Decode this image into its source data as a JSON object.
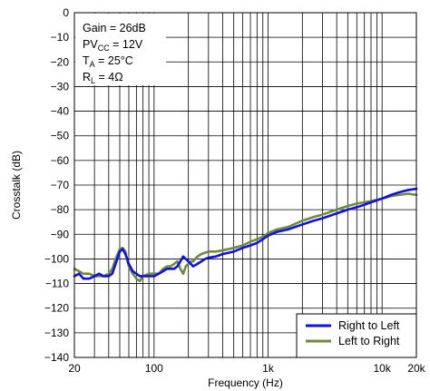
{
  "chart_data": {
    "type": "line",
    "title": "",
    "xlabel": "Frequency (Hz)",
    "ylabel": "Crosstalk (dB)",
    "x_scale": "log",
    "xlim": [
      20,
      20000
    ],
    "ylim": [
      -140,
      0
    ],
    "y_ticks": [
      0,
      -10,
      -20,
      -30,
      -40,
      -50,
      -60,
      -70,
      -80,
      -90,
      -100,
      -110,
      -120,
      -130,
      -140
    ],
    "y_tick_labels": [
      "0",
      "−10",
      "−20",
      "−30",
      "−40",
      "−50",
      "−60",
      "−70",
      "−80",
      "−90",
      "−100",
      "−110",
      "−120",
      "−130",
      "−140"
    ],
    "x_tick_labels": [
      {
        "value": 20,
        "label": "20"
      },
      {
        "value": 100,
        "label": "100"
      },
      {
        "value": 1000,
        "label": "1k"
      },
      {
        "value": 10000,
        "label": "10k"
      },
      {
        "value": 20000,
        "label": "20k"
      }
    ],
    "grid": true,
    "annotation": {
      "lines": [
        {
          "main": "Gain = 26dB",
          "sub": "",
          "tail": ""
        },
        {
          "main": "PV",
          "sub": "CC",
          "tail": " = 12V"
        },
        {
          "main": "T",
          "sub": "A",
          "tail": " = 25°C"
        },
        {
          "main": "R",
          "sub": "L",
          "tail": " = 4Ω"
        }
      ]
    },
    "legend_position": "bottom-right",
    "series": [
      {
        "name": "Right to Left",
        "color": "#1010e0",
        "points": [
          [
            20,
            -107
          ],
          [
            22,
            -106
          ],
          [
            24,
            -108
          ],
          [
            27,
            -108
          ],
          [
            30,
            -107
          ],
          [
            33,
            -106
          ],
          [
            36,
            -107
          ],
          [
            40,
            -107
          ],
          [
            43,
            -106
          ],
          [
            46,
            -102
          ],
          [
            50,
            -97
          ],
          [
            53,
            -96
          ],
          [
            56,
            -98
          ],
          [
            60,
            -102
          ],
          [
            65,
            -105
          ],
          [
            70,
            -106
          ],
          [
            75,
            -107
          ],
          [
            80,
            -107
          ],
          [
            90,
            -107
          ],
          [
            100,
            -107
          ],
          [
            110,
            -106
          ],
          [
            120,
            -105
          ],
          [
            130,
            -104
          ],
          [
            140,
            -104
          ],
          [
            150,
            -104
          ],
          [
            160,
            -103
          ],
          [
            170,
            -101
          ],
          [
            180,
            -99
          ],
          [
            190,
            -100
          ],
          [
            200,
            -101
          ],
          [
            210,
            -102
          ],
          [
            220,
            -103
          ],
          [
            240,
            -102
          ],
          [
            260,
            -101
          ],
          [
            280,
            -100
          ],
          [
            300,
            -99.5
          ],
          [
            350,
            -99
          ],
          [
            400,
            -98
          ],
          [
            450,
            -97.5
          ],
          [
            500,
            -97
          ],
          [
            600,
            -95.5
          ],
          [
            700,
            -94.5
          ],
          [
            800,
            -93.5
          ],
          [
            900,
            -92
          ],
          [
            1000,
            -90.5
          ],
          [
            1200,
            -89
          ],
          [
            1500,
            -88
          ],
          [
            2000,
            -86
          ],
          [
            2500,
            -84.5
          ],
          [
            3000,
            -83.5
          ],
          [
            4000,
            -81.5
          ],
          [
            5000,
            -80
          ],
          [
            6000,
            -79
          ],
          [
            7000,
            -78
          ],
          [
            8000,
            -77
          ],
          [
            10000,
            -75.5
          ],
          [
            12000,
            -74
          ],
          [
            14000,
            -73
          ],
          [
            17000,
            -72
          ],
          [
            20000,
            -71.5
          ]
        ]
      },
      {
        "name": "Left to Right",
        "color": "#6e8a3a",
        "points": [
          [
            20,
            -104
          ],
          [
            22,
            -105
          ],
          [
            24,
            -106
          ],
          [
            27,
            -106
          ],
          [
            30,
            -107
          ],
          [
            33,
            -107
          ],
          [
            36,
            -107
          ],
          [
            40,
            -106
          ],
          [
            43,
            -104
          ],
          [
            46,
            -100
          ],
          [
            50,
            -96
          ],
          [
            53,
            -95.5
          ],
          [
            56,
            -97
          ],
          [
            60,
            -103
          ],
          [
            65,
            -106
          ],
          [
            70,
            -108
          ],
          [
            75,
            -109
          ],
          [
            80,
            -107
          ],
          [
            90,
            -106
          ],
          [
            100,
            -106
          ],
          [
            110,
            -106
          ],
          [
            120,
            -104
          ],
          [
            130,
            -103
          ],
          [
            140,
            -103
          ],
          [
            150,
            -102
          ],
          [
            160,
            -101
          ],
          [
            170,
            -104
          ],
          [
            180,
            -106
          ],
          [
            190,
            -103
          ],
          [
            200,
            -102
          ],
          [
            210,
            -101
          ],
          [
            220,
            -101
          ],
          [
            240,
            -99
          ],
          [
            260,
            -98
          ],
          [
            280,
            -97.5
          ],
          [
            300,
            -97
          ],
          [
            350,
            -97
          ],
          [
            400,
            -96.5
          ],
          [
            450,
            -96
          ],
          [
            500,
            -95.5
          ],
          [
            600,
            -94.5
          ],
          [
            700,
            -93
          ],
          [
            800,
            -92
          ],
          [
            900,
            -91
          ],
          [
            1000,
            -89.5
          ],
          [
            1200,
            -88
          ],
          [
            1500,
            -87
          ],
          [
            2000,
            -84.5
          ],
          [
            2500,
            -83
          ],
          [
            3000,
            -82
          ],
          [
            4000,
            -80
          ],
          [
            5000,
            -78.5
          ],
          [
            6000,
            -77.5
          ],
          [
            7000,
            -77
          ],
          [
            8000,
            -76.5
          ],
          [
            10000,
            -75.5
          ],
          [
            12000,
            -74.5
          ],
          [
            14000,
            -74
          ],
          [
            17000,
            -73.5
          ],
          [
            20000,
            -74
          ]
        ]
      }
    ]
  }
}
